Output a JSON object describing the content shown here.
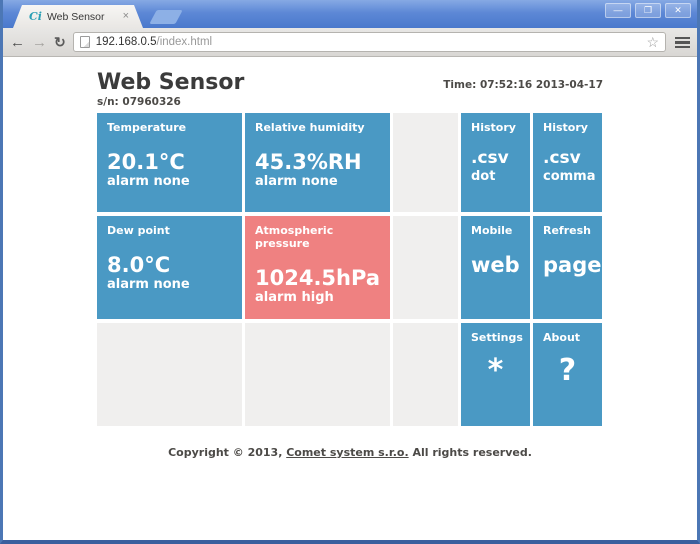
{
  "colors": {
    "tile_blue": "#4a99c4",
    "tile_red": "#ef8181",
    "tile_empty": "#f0efee",
    "frame_blue": "#4c77b5",
    "frame_blue_dark": "#3a5f9e"
  },
  "browser": {
    "tab_title": "Web Sensor",
    "favicon_text": "Ci",
    "url": {
      "host": "192.168.0.5",
      "path": "/index.html"
    },
    "icons": {
      "tab_close": "×",
      "minimize": "—",
      "maximize": "❐",
      "close": "✕",
      "back": "←",
      "forward": "→",
      "reload": "↻",
      "bookmark_star": "☆"
    }
  },
  "header": {
    "title": "Web Sensor",
    "serial": "s/n: 07960326",
    "time": "Time: 07:52:16 2013-04-17"
  },
  "tiles": [
    {
      "label": "Temperature",
      "value": "20.1°C",
      "sub": "alarm none"
    },
    {
      "label": "Relative humidity",
      "value": "45.3%RH",
      "sub": "alarm none"
    },
    {
      "label": "History",
      "value": ".csv",
      "sub": "dot"
    },
    {
      "label": "History",
      "value": ".csv",
      "sub": "comma"
    },
    {
      "label": "Dew point",
      "value": "8.0°C",
      "sub": "alarm none"
    },
    {
      "label": "Atmospheric pressure",
      "value": "1024.5hPa",
      "sub": "alarm high"
    },
    {
      "label": "Mobile",
      "value": "web",
      "sub": ""
    },
    {
      "label": "Refresh",
      "value": "page",
      "sub": ""
    },
    {
      "label": "Settings",
      "value": "*",
      "sub": ""
    },
    {
      "label": "About",
      "value": "?",
      "sub": ""
    }
  ],
  "footer": {
    "prefix": "Copyright © 2013, ",
    "link": "Comet system s.r.o.",
    "suffix": " All rights reserved."
  }
}
